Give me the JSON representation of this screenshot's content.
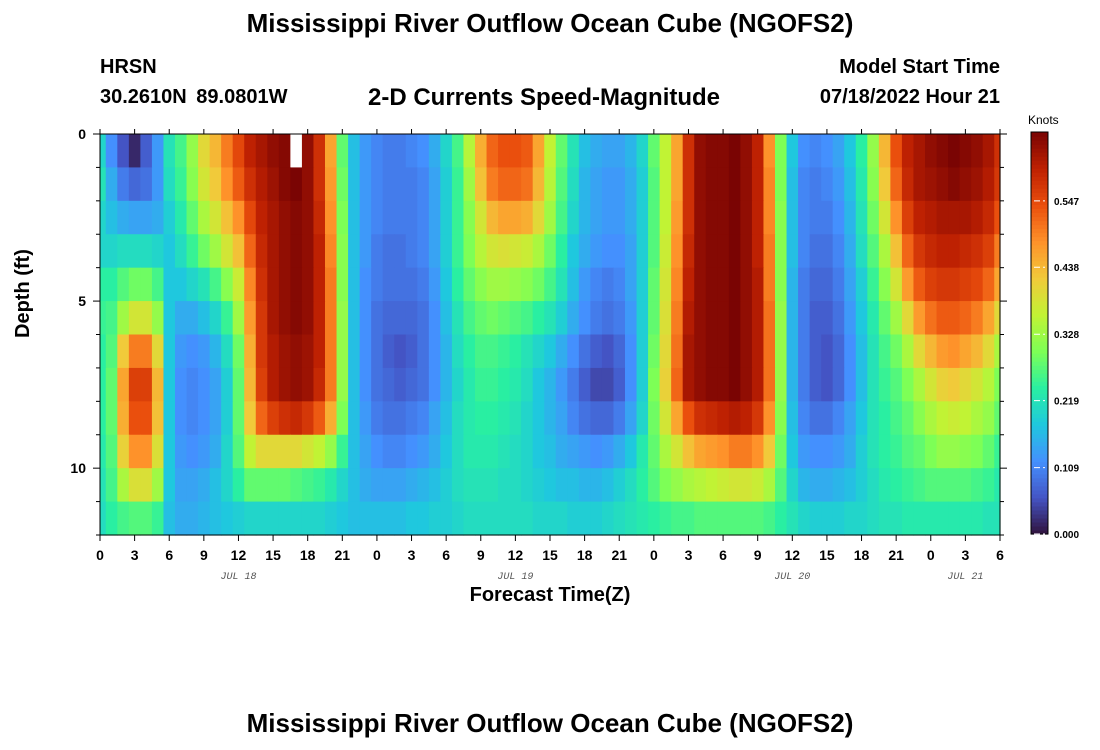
{
  "header": {
    "title": "Mississippi River Outflow Ocean Cube (NGOFS2)",
    "station": "HRSN",
    "coordinates": "30.2610N 89.0801W",
    "subtitle": "2-D Currents Speed-Magnitude",
    "model_start_label": "Model Start Time",
    "model_start_value": "07/18/2022 Hour 21"
  },
  "footer": {
    "title": "Mississippi River Outflow Ocean Cube (NGOFS2)"
  },
  "colorbar": {
    "unit": "Knots",
    "ticks": [
      0.0,
      0.109,
      0.219,
      0.328,
      0.438,
      0.547
    ],
    "tick_labels": [
      "0.000",
      "0.109",
      "0.219",
      "0.328",
      "0.438",
      "0.547"
    ],
    "max": 0.66,
    "colors": [
      "#30123b",
      "#4454c4",
      "#4490fe",
      "#1fc8de",
      "#29efa2",
      "#7dff56",
      "#c1f334",
      "#f1ca3a",
      "#fe922a",
      "#ea4f0d",
      "#be2102",
      "#7a0403"
    ]
  },
  "chart_data": {
    "type": "heatmap",
    "title": "2-D Currents Speed-Magnitude",
    "xlabel": "Forecast Time(Z)",
    "ylabel": "Depth (ft)",
    "x_range_hours": [
      0,
      78
    ],
    "y_range": [
      0,
      12
    ],
    "x_tick_labels": [
      "0",
      "3",
      "6",
      "9",
      "12",
      "15",
      "18",
      "21",
      "0",
      "3",
      "6",
      "9",
      "12",
      "15",
      "18",
      "21",
      "0",
      "3",
      "6",
      "9",
      "12",
      "15",
      "18",
      "21",
      "0",
      "3",
      "6"
    ],
    "y_ticks": [
      0,
      5,
      10
    ],
    "y_tick_labels": [
      "0",
      "5",
      "10"
    ],
    "day_labels": [
      {
        "label": "JUL 18",
        "hour": 12
      },
      {
        "label": "JUL 19",
        "hour": 36
      },
      {
        "label": "JUL 20",
        "hour": 60
      },
      {
        "label": "JUL 21",
        "hour": 75
      }
    ],
    "units": "Knots",
    "vmin": 0,
    "vmax": 0.66,
    "depth_levels": [
      0.5,
      1.5,
      2.5,
      3.5,
      4.5,
      5.5,
      6.5,
      7.5,
      8.5,
      9.5,
      10.5,
      11.5
    ],
    "hours": [
      0,
      1,
      2,
      3,
      4,
      5,
      6,
      7,
      8,
      9,
      10,
      11,
      12,
      13,
      14,
      15,
      16,
      17,
      18,
      19,
      20,
      21,
      22,
      23,
      24,
      25,
      26,
      27,
      28,
      29,
      30,
      31,
      32,
      33,
      34,
      35,
      36,
      37,
      38,
      39,
      40,
      41,
      42,
      43,
      44,
      45,
      46,
      47,
      48,
      49,
      50,
      51,
      52,
      53,
      54,
      55,
      56,
      57,
      58,
      59,
      60,
      61,
      62,
      63,
      64,
      65,
      66,
      67,
      68,
      69,
      70,
      71,
      72,
      73,
      74,
      75,
      76,
      77,
      78
    ],
    "speed": [
      [
        0.2,
        0.12,
        0.06,
        0.02,
        0.07,
        0.13,
        0.22,
        0.26,
        0.32,
        0.4,
        0.44,
        0.5,
        0.55,
        0.6,
        0.62,
        0.64,
        0.65,
        0.66,
        0.64,
        0.58,
        0.46,
        0.28,
        0.17,
        0.13,
        0.11,
        0.1,
        0.1,
        0.11,
        0.12,
        0.15,
        0.2,
        0.26,
        0.35,
        0.45,
        0.52,
        0.54,
        0.54,
        0.53,
        0.46,
        0.36,
        0.28,
        0.22,
        0.17,
        0.15,
        0.14,
        0.14,
        0.16,
        0.2,
        0.28,
        0.36,
        0.46,
        0.58,
        0.64,
        0.65,
        0.65,
        0.66,
        0.64,
        0.6,
        0.48,
        0.3,
        0.18,
        0.12,
        0.11,
        0.12,
        0.14,
        0.18,
        0.24,
        0.32,
        0.44,
        0.54,
        0.6,
        0.62,
        0.64,
        0.65,
        0.66,
        0.65,
        0.64,
        0.62,
        0.58
      ],
      [
        0.22,
        0.15,
        0.1,
        0.08,
        0.09,
        0.13,
        0.21,
        0.25,
        0.31,
        0.38,
        0.42,
        0.48,
        0.53,
        0.58,
        0.61,
        0.63,
        0.65,
        0.66,
        0.64,
        0.58,
        0.47,
        0.29,
        0.17,
        0.13,
        0.11,
        0.1,
        0.1,
        0.1,
        0.11,
        0.14,
        0.19,
        0.25,
        0.33,
        0.43,
        0.5,
        0.52,
        0.52,
        0.51,
        0.44,
        0.35,
        0.27,
        0.21,
        0.16,
        0.14,
        0.13,
        0.13,
        0.15,
        0.19,
        0.27,
        0.36,
        0.46,
        0.58,
        0.64,
        0.65,
        0.65,
        0.66,
        0.64,
        0.6,
        0.49,
        0.3,
        0.17,
        0.11,
        0.1,
        0.11,
        0.13,
        0.17,
        0.23,
        0.31,
        0.42,
        0.52,
        0.59,
        0.62,
        0.63,
        0.64,
        0.65,
        0.64,
        0.63,
        0.61,
        0.57
      ],
      [
        0.2,
        0.17,
        0.15,
        0.14,
        0.14,
        0.15,
        0.19,
        0.23,
        0.28,
        0.34,
        0.38,
        0.43,
        0.48,
        0.55,
        0.6,
        0.62,
        0.64,
        0.65,
        0.64,
        0.59,
        0.48,
        0.3,
        0.17,
        0.13,
        0.11,
        0.1,
        0.1,
        0.1,
        0.11,
        0.14,
        0.19,
        0.25,
        0.31,
        0.38,
        0.44,
        0.46,
        0.46,
        0.45,
        0.4,
        0.33,
        0.26,
        0.2,
        0.16,
        0.14,
        0.13,
        0.13,
        0.15,
        0.19,
        0.27,
        0.36,
        0.47,
        0.58,
        0.64,
        0.65,
        0.65,
        0.66,
        0.64,
        0.6,
        0.49,
        0.31,
        0.17,
        0.11,
        0.1,
        0.1,
        0.12,
        0.16,
        0.22,
        0.29,
        0.38,
        0.48,
        0.56,
        0.6,
        0.61,
        0.62,
        0.62,
        0.62,
        0.61,
        0.59,
        0.54
      ],
      [
        0.2,
        0.2,
        0.21,
        0.21,
        0.21,
        0.2,
        0.18,
        0.21,
        0.25,
        0.29,
        0.33,
        0.38,
        0.43,
        0.52,
        0.59,
        0.62,
        0.64,
        0.65,
        0.64,
        0.6,
        0.49,
        0.31,
        0.17,
        0.13,
        0.1,
        0.09,
        0.09,
        0.1,
        0.11,
        0.14,
        0.19,
        0.25,
        0.3,
        0.35,
        0.38,
        0.39,
        0.38,
        0.37,
        0.34,
        0.29,
        0.24,
        0.18,
        0.15,
        0.13,
        0.12,
        0.12,
        0.14,
        0.19,
        0.27,
        0.37,
        0.48,
        0.59,
        0.64,
        0.65,
        0.65,
        0.66,
        0.64,
        0.6,
        0.5,
        0.31,
        0.17,
        0.11,
        0.09,
        0.09,
        0.11,
        0.15,
        0.21,
        0.27,
        0.34,
        0.43,
        0.52,
        0.57,
        0.59,
        0.6,
        0.6,
        0.59,
        0.58,
        0.56,
        0.5
      ],
      [
        0.24,
        0.24,
        0.27,
        0.29,
        0.29,
        0.26,
        0.18,
        0.18,
        0.2,
        0.22,
        0.26,
        0.31,
        0.37,
        0.49,
        0.58,
        0.62,
        0.64,
        0.65,
        0.64,
        0.6,
        0.5,
        0.31,
        0.17,
        0.12,
        0.1,
        0.09,
        0.09,
        0.09,
        0.1,
        0.13,
        0.18,
        0.24,
        0.28,
        0.31,
        0.33,
        0.33,
        0.32,
        0.31,
        0.29,
        0.26,
        0.22,
        0.17,
        0.13,
        0.11,
        0.1,
        0.11,
        0.14,
        0.19,
        0.28,
        0.38,
        0.49,
        0.6,
        0.64,
        0.65,
        0.65,
        0.66,
        0.64,
        0.61,
        0.5,
        0.31,
        0.16,
        0.1,
        0.08,
        0.08,
        0.1,
        0.14,
        0.19,
        0.25,
        0.31,
        0.38,
        0.47,
        0.53,
        0.56,
        0.57,
        0.57,
        0.56,
        0.55,
        0.52,
        0.46
      ],
      [
        0.25,
        0.26,
        0.33,
        0.38,
        0.38,
        0.32,
        0.18,
        0.15,
        0.15,
        0.17,
        0.2,
        0.25,
        0.33,
        0.47,
        0.57,
        0.62,
        0.64,
        0.65,
        0.64,
        0.6,
        0.5,
        0.32,
        0.17,
        0.12,
        0.09,
        0.08,
        0.08,
        0.08,
        0.09,
        0.12,
        0.17,
        0.22,
        0.26,
        0.28,
        0.29,
        0.28,
        0.27,
        0.26,
        0.24,
        0.22,
        0.19,
        0.15,
        0.12,
        0.1,
        0.09,
        0.1,
        0.13,
        0.19,
        0.28,
        0.39,
        0.5,
        0.61,
        0.64,
        0.65,
        0.65,
        0.66,
        0.64,
        0.61,
        0.51,
        0.32,
        0.16,
        0.1,
        0.07,
        0.07,
        0.09,
        0.13,
        0.18,
        0.23,
        0.28,
        0.33,
        0.4,
        0.47,
        0.51,
        0.53,
        0.53,
        0.52,
        0.5,
        0.46,
        0.4
      ],
      [
        0.24,
        0.27,
        0.42,
        0.5,
        0.5,
        0.4,
        0.18,
        0.13,
        0.12,
        0.13,
        0.16,
        0.21,
        0.29,
        0.45,
        0.57,
        0.61,
        0.63,
        0.64,
        0.63,
        0.6,
        0.5,
        0.32,
        0.17,
        0.12,
        0.09,
        0.07,
        0.06,
        0.07,
        0.09,
        0.12,
        0.16,
        0.21,
        0.24,
        0.26,
        0.26,
        0.25,
        0.24,
        0.22,
        0.2,
        0.18,
        0.15,
        0.12,
        0.09,
        0.07,
        0.06,
        0.08,
        0.12,
        0.19,
        0.29,
        0.4,
        0.51,
        0.62,
        0.64,
        0.65,
        0.65,
        0.66,
        0.64,
        0.61,
        0.51,
        0.32,
        0.16,
        0.1,
        0.07,
        0.06,
        0.08,
        0.12,
        0.17,
        0.22,
        0.26,
        0.29,
        0.34,
        0.4,
        0.44,
        0.47,
        0.48,
        0.46,
        0.44,
        0.4,
        0.34
      ],
      [
        0.24,
        0.28,
        0.46,
        0.56,
        0.56,
        0.44,
        0.18,
        0.12,
        0.11,
        0.12,
        0.14,
        0.19,
        0.28,
        0.44,
        0.56,
        0.61,
        0.63,
        0.64,
        0.63,
        0.59,
        0.5,
        0.32,
        0.17,
        0.12,
        0.09,
        0.08,
        0.07,
        0.08,
        0.09,
        0.12,
        0.16,
        0.2,
        0.23,
        0.25,
        0.25,
        0.24,
        0.23,
        0.21,
        0.18,
        0.16,
        0.13,
        0.1,
        0.07,
        0.05,
        0.05,
        0.07,
        0.12,
        0.19,
        0.3,
        0.41,
        0.52,
        0.62,
        0.64,
        0.65,
        0.65,
        0.66,
        0.64,
        0.61,
        0.51,
        0.32,
        0.16,
        0.1,
        0.07,
        0.06,
        0.08,
        0.12,
        0.17,
        0.22,
        0.25,
        0.27,
        0.3,
        0.34,
        0.38,
        0.41,
        0.42,
        0.4,
        0.38,
        0.35,
        0.3
      ],
      [
        0.24,
        0.28,
        0.45,
        0.54,
        0.54,
        0.43,
        0.18,
        0.12,
        0.11,
        0.12,
        0.14,
        0.19,
        0.28,
        0.42,
        0.52,
        0.56,
        0.58,
        0.59,
        0.57,
        0.53,
        0.45,
        0.3,
        0.17,
        0.13,
        0.1,
        0.09,
        0.09,
        0.1,
        0.11,
        0.14,
        0.17,
        0.21,
        0.23,
        0.24,
        0.24,
        0.23,
        0.22,
        0.2,
        0.18,
        0.16,
        0.14,
        0.11,
        0.09,
        0.08,
        0.08,
        0.1,
        0.14,
        0.2,
        0.29,
        0.38,
        0.46,
        0.54,
        0.58,
        0.59,
        0.6,
        0.61,
        0.6,
        0.57,
        0.48,
        0.31,
        0.17,
        0.11,
        0.09,
        0.09,
        0.11,
        0.14,
        0.18,
        0.22,
        0.24,
        0.26,
        0.28,
        0.31,
        0.34,
        0.36,
        0.37,
        0.36,
        0.34,
        0.32,
        0.28
      ],
      [
        0.23,
        0.27,
        0.41,
        0.48,
        0.48,
        0.39,
        0.18,
        0.13,
        0.12,
        0.13,
        0.15,
        0.2,
        0.27,
        0.36,
        0.4,
        0.4,
        0.4,
        0.4,
        0.38,
        0.36,
        0.32,
        0.25,
        0.17,
        0.14,
        0.12,
        0.11,
        0.11,
        0.12,
        0.13,
        0.15,
        0.18,
        0.21,
        0.23,
        0.23,
        0.23,
        0.22,
        0.21,
        0.2,
        0.18,
        0.17,
        0.15,
        0.14,
        0.13,
        0.12,
        0.13,
        0.15,
        0.18,
        0.23,
        0.28,
        0.34,
        0.38,
        0.43,
        0.46,
        0.47,
        0.48,
        0.5,
        0.5,
        0.48,
        0.42,
        0.29,
        0.18,
        0.13,
        0.12,
        0.12,
        0.13,
        0.15,
        0.19,
        0.22,
        0.24,
        0.25,
        0.27,
        0.28,
        0.3,
        0.32,
        0.32,
        0.31,
        0.3,
        0.28,
        0.25
      ],
      [
        0.22,
        0.26,
        0.34,
        0.39,
        0.39,
        0.33,
        0.18,
        0.14,
        0.14,
        0.15,
        0.17,
        0.2,
        0.24,
        0.28,
        0.28,
        0.28,
        0.28,
        0.27,
        0.26,
        0.25,
        0.23,
        0.2,
        0.17,
        0.15,
        0.14,
        0.14,
        0.14,
        0.15,
        0.16,
        0.17,
        0.19,
        0.21,
        0.22,
        0.22,
        0.22,
        0.21,
        0.21,
        0.2,
        0.19,
        0.18,
        0.17,
        0.17,
        0.16,
        0.16,
        0.17,
        0.19,
        0.21,
        0.24,
        0.27,
        0.3,
        0.32,
        0.34,
        0.35,
        0.36,
        0.37,
        0.38,
        0.38,
        0.37,
        0.34,
        0.27,
        0.2,
        0.16,
        0.15,
        0.15,
        0.16,
        0.17,
        0.19,
        0.21,
        0.23,
        0.24,
        0.25,
        0.26,
        0.27,
        0.27,
        0.27,
        0.27,
        0.26,
        0.25,
        0.23
      ],
      [
        0.21,
        0.24,
        0.26,
        0.27,
        0.27,
        0.25,
        0.17,
        0.15,
        0.15,
        0.16,
        0.17,
        0.18,
        0.19,
        0.2,
        0.2,
        0.2,
        0.2,
        0.2,
        0.2,
        0.2,
        0.19,
        0.18,
        0.17,
        0.17,
        0.17,
        0.17,
        0.17,
        0.18,
        0.18,
        0.19,
        0.19,
        0.2,
        0.21,
        0.21,
        0.21,
        0.21,
        0.21,
        0.21,
        0.2,
        0.2,
        0.2,
        0.19,
        0.19,
        0.19,
        0.2,
        0.21,
        0.22,
        0.23,
        0.24,
        0.25,
        0.26,
        0.26,
        0.27,
        0.27,
        0.27,
        0.27,
        0.27,
        0.27,
        0.26,
        0.24,
        0.22,
        0.2,
        0.19,
        0.19,
        0.19,
        0.2,
        0.2,
        0.21,
        0.22,
        0.22,
        0.23,
        0.23,
        0.23,
        0.23,
        0.23,
        0.23,
        0.23,
        0.22,
        0.22
      ]
    ],
    "masked_cells": [
      {
        "hour": 17,
        "depth_index": 0
      }
    ]
  }
}
